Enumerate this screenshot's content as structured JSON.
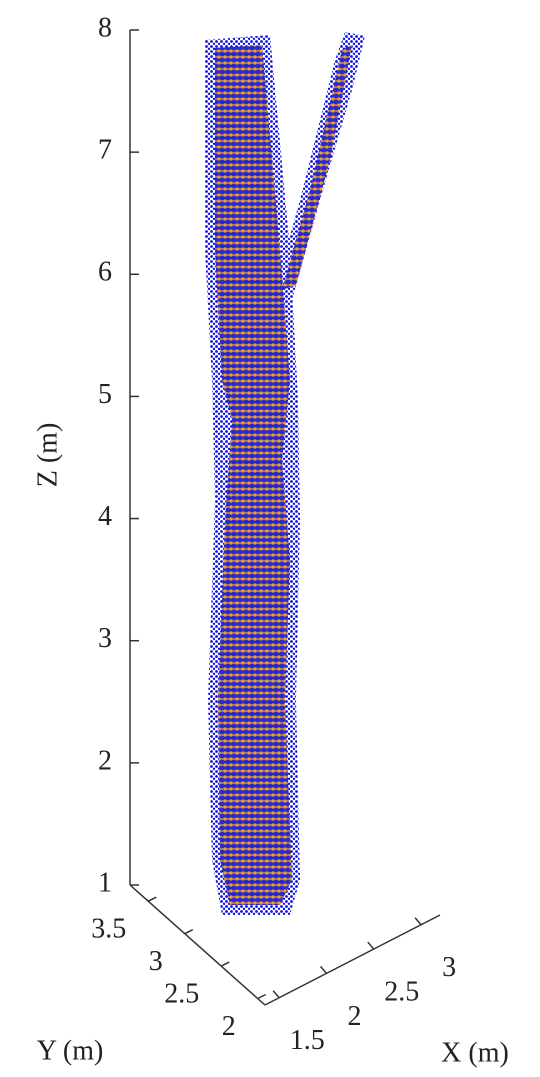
{
  "chart_data": {
    "type": "scatter3d",
    "xlabel": "X (m)",
    "ylabel": "Y (m)",
    "zlabel": "Z (m)",
    "xlim": [
      1.35,
      3.2
    ],
    "xticks": [
      1.5,
      2,
      2.5,
      3
    ],
    "ylim": [
      1.9,
      3.75
    ],
    "yticks": [
      2,
      2.5,
      3,
      3.5
    ],
    "zlim": [
      1,
      8
    ],
    "zticks": [
      1,
      2,
      3,
      4,
      5,
      6,
      7,
      8
    ],
    "colors": [
      "#1010e0",
      "#f0a020"
    ]
  }
}
